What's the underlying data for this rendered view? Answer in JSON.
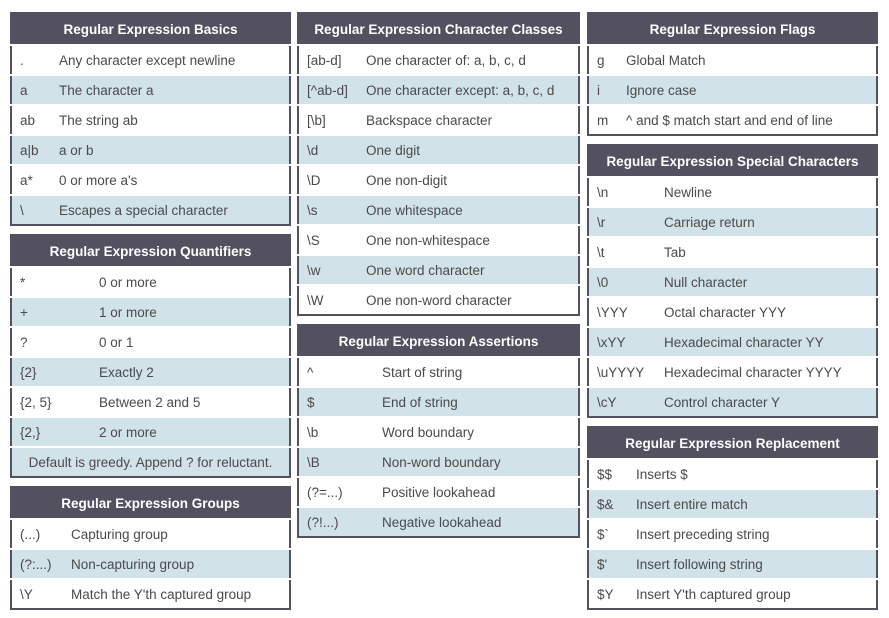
{
  "theme": {
    "header_bg": "#53505f",
    "border": "#53505f",
    "row_bg": "#ffffff",
    "row_alt_bg": "#d1e2e9",
    "text": "#4a4a4a",
    "header_text": "#ffffff"
  },
  "tables": {
    "basics": {
      "title": "Regular Expression Basics",
      "rows": [
        [
          ".",
          "Any character except newline"
        ],
        [
          "a",
          "The character a"
        ],
        [
          "ab",
          "The string ab"
        ],
        [
          "a|b",
          "a or b"
        ],
        [
          "a*",
          "0 or more a's"
        ],
        [
          "\\",
          "Escapes a special character"
        ]
      ]
    },
    "quantifiers": {
      "title": "Regular Expression Quantifiers",
      "rows": [
        [
          "*",
          "0 or more"
        ],
        [
          "+",
          "1 or more"
        ],
        [
          "?",
          "0 or 1"
        ],
        [
          "{2}",
          "Exactly 2"
        ],
        [
          "{2, 5}",
          "Between 2 and 5"
        ],
        [
          "{2,}",
          "2 or more"
        ]
      ],
      "footer": "Default is greedy. Append ? for reluctant."
    },
    "groups": {
      "title": "Regular Expression Groups",
      "rows": [
        [
          "(...)",
          "Capturing group"
        ],
        [
          "(?:...)",
          "Non-capturing group"
        ],
        [
          "\\Y",
          "Match the Y'th captured group"
        ]
      ]
    },
    "character_classes": {
      "title": "Regular Expression Character Classes",
      "rows": [
        [
          "[ab-d]",
          "One character of: a, b, c, d"
        ],
        [
          "[^ab-d]",
          "One character except: a, b, c, d"
        ],
        [
          "[\\b]",
          "Backspace character"
        ],
        [
          "\\d",
          "One digit"
        ],
        [
          "\\D",
          "One non-digit"
        ],
        [
          "\\s",
          "One whitespace"
        ],
        [
          "\\S",
          "One non-whitespace"
        ],
        [
          "\\w",
          "One word character"
        ],
        [
          "\\W",
          "One non-word character"
        ]
      ]
    },
    "assertions": {
      "title": "Regular Expression Assertions",
      "rows": [
        [
          "^",
          "Start of string"
        ],
        [
          "$",
          "End of string"
        ],
        [
          "\\b",
          "Word boundary"
        ],
        [
          "\\B",
          "Non-word boundary"
        ],
        [
          "(?=...)",
          "Positive lookahead"
        ],
        [
          "(?!...)",
          "Negative lookahead"
        ]
      ]
    },
    "flags": {
      "title": "Regular Expression Flags",
      "rows": [
        [
          "g",
          "Global Match"
        ],
        [
          "i",
          "Ignore case"
        ],
        [
          "m",
          "^ and $ match start and end of line"
        ]
      ]
    },
    "special_characters": {
      "title": "Regular Expression Special Characters",
      "rows": [
        [
          "\\n",
          "Newline"
        ],
        [
          "\\r",
          "Carriage return"
        ],
        [
          "\\t",
          "Tab"
        ],
        [
          "\\0",
          "Null character"
        ],
        [
          "\\YYY",
          "Octal character YYY"
        ],
        [
          "\\xYY",
          "Hexadecimal character YY"
        ],
        [
          "\\uYYYY",
          "Hexadecimal character YYYY"
        ],
        [
          "\\cY",
          "Control character Y"
        ]
      ]
    },
    "replacement": {
      "title": "Regular Expression Replacement",
      "rows": [
        [
          "$$",
          "Inserts $"
        ],
        [
          "$&",
          "Insert entire match"
        ],
        [
          "$`",
          "Insert preceding string"
        ],
        [
          "$'",
          "Insert following string"
        ],
        [
          "$Y",
          "Insert Y'th captured group"
        ]
      ]
    }
  }
}
